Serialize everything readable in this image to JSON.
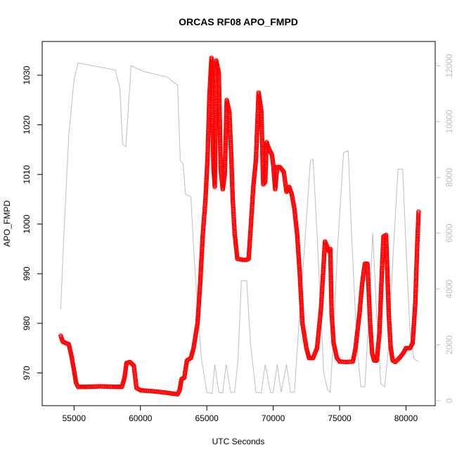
{
  "chart_data": {
    "type": "scatter",
    "title": "ORCAS RF08 APO_FMPD",
    "xlabel": "UTC Seconds",
    "ylabel": "APO_FMPD",
    "xlim": [
      52600,
      82200
    ],
    "ylim": [
      963.4,
      1036.8
    ],
    "y2lim": [
      -180,
      12870
    ],
    "grid": false,
    "legend": "none",
    "x_ticks": [
      55000,
      60000,
      65000,
      70000,
      75000,
      80000
    ],
    "y_ticks": [
      970,
      980,
      990,
      1000,
      1010,
      1020,
      1030
    ],
    "y2_ticks": [
      0,
      2000,
      4000,
      6000,
      8000,
      10000,
      12000
    ],
    "colors": {
      "primary": "#ff0000",
      "secondary": "#bebebe"
    },
    "series": [
      {
        "axis": "left",
        "style": "circles",
        "points": [
          [
            54000,
            977.5
          ],
          [
            54150,
            976.3
          ],
          [
            54400,
            976.0
          ],
          [
            54600,
            975.8
          ],
          [
            54800,
            973.5
          ],
          [
            55000,
            970.5
          ],
          [
            55150,
            968.0
          ],
          [
            55300,
            967.2
          ],
          [
            56000,
            967.2
          ],
          [
            57000,
            967.3
          ],
          [
            58000,
            967.2
          ],
          [
            58600,
            967.2
          ],
          [
            58800,
            969.0
          ],
          [
            58950,
            972.0
          ],
          [
            59200,
            972.2
          ],
          [
            59500,
            971.5
          ],
          [
            59700,
            967.0
          ],
          [
            60000,
            966.5
          ],
          [
            61000,
            966.3
          ],
          [
            62000,
            966.0
          ],
          [
            62800,
            965.7
          ],
          [
            62950,
            966.5
          ],
          [
            63100,
            968.8
          ],
          [
            63300,
            969.0
          ],
          [
            63500,
            972.5
          ],
          [
            63800,
            973.0
          ],
          [
            64000,
            975.0
          ],
          [
            64300,
            980.0
          ],
          [
            64500,
            988.0
          ],
          [
            64700,
            998.0
          ],
          [
            64900,
            1005.0
          ],
          [
            65050,
            1013.0
          ],
          [
            65200,
            1026.0
          ],
          [
            65350,
            1033.5
          ],
          [
            65500,
            1011.5
          ],
          [
            65600,
            1007.5
          ],
          [
            65700,
            1033.0
          ],
          [
            65900,
            1030.5
          ],
          [
            66050,
            1011.0
          ],
          [
            66200,
            1007.0
          ],
          [
            66350,
            1010.0
          ],
          [
            66500,
            1025.0
          ],
          [
            66700,
            1022.5
          ],
          [
            66850,
            1013.0
          ],
          [
            66950,
            1005.0
          ],
          [
            67100,
            998.0
          ],
          [
            67300,
            993.0
          ],
          [
            67700,
            992.8
          ],
          [
            68000,
            992.8
          ],
          [
            68150,
            993.0
          ],
          [
            68300,
            999.0
          ],
          [
            68500,
            1007.5
          ],
          [
            68700,
            1013.0
          ],
          [
            68900,
            1026.5
          ],
          [
            69100,
            1023.0
          ],
          [
            69250,
            1008.0
          ],
          [
            69400,
            1008.5
          ],
          [
            69500,
            1016.5
          ],
          [
            69700,
            1015.0
          ],
          [
            69900,
            1014.0
          ],
          [
            70000,
            1012.0
          ],
          [
            70150,
            1007.0
          ],
          [
            70300,
            1011.5
          ],
          [
            70500,
            1011.5
          ],
          [
            70800,
            1010.5
          ],
          [
            71000,
            1006.5
          ],
          [
            71200,
            1007.5
          ],
          [
            71400,
            1006.0
          ],
          [
            71600,
            1003.0
          ],
          [
            71800,
            998.0
          ],
          [
            72000,
            990.0
          ],
          [
            72200,
            980.0
          ],
          [
            72500,
            975.0
          ],
          [
            72700,
            973.0
          ],
          [
            73000,
            973.0
          ],
          [
            73300,
            975.0
          ],
          [
            73600,
            983.0
          ],
          [
            73900,
            996.5
          ],
          [
            74200,
            994.5
          ],
          [
            74300,
            995.0
          ],
          [
            74400,
            982.0
          ],
          [
            74550,
            976.0
          ],
          [
            74800,
            973.0
          ],
          [
            75000,
            972.3
          ],
          [
            75500,
            972.2
          ],
          [
            76000,
            972.3
          ],
          [
            76200,
            975.0
          ],
          [
            76500,
            982.0
          ],
          [
            76700,
            988.0
          ],
          [
            76900,
            992.0
          ],
          [
            77100,
            992.0
          ],
          [
            77300,
            980.0
          ],
          [
            77450,
            974.0
          ],
          [
            77600,
            972.5
          ],
          [
            77800,
            972.5
          ],
          [
            78000,
            978.0
          ],
          [
            78150,
            988.0
          ],
          [
            78300,
            997.5
          ],
          [
            78500,
            997.8
          ],
          [
            78600,
            990.0
          ],
          [
            78700,
            982.0
          ],
          [
            78850,
            975.0
          ],
          [
            79000,
            972.5
          ],
          [
            79200,
            972.2
          ],
          [
            79500,
            973.0
          ],
          [
            79800,
            974.0
          ],
          [
            80000,
            975.0
          ],
          [
            80300,
            975.0
          ],
          [
            80500,
            976.0
          ],
          [
            80700,
            984.0
          ],
          [
            80850,
            996.0
          ],
          [
            80950,
            1002.5
          ]
        ]
      },
      {
        "axis": "right",
        "style": "line",
        "points": [
          [
            54000,
            3300
          ],
          [
            54200,
            5600
          ],
          [
            54600,
            9500
          ],
          [
            55000,
            11500
          ],
          [
            55300,
            12100
          ],
          [
            58100,
            11850
          ],
          [
            58450,
            11200
          ],
          [
            58650,
            9200
          ],
          [
            58900,
            9100
          ],
          [
            59300,
            12000
          ],
          [
            60200,
            11800
          ],
          [
            62000,
            11600
          ],
          [
            62800,
            11300
          ],
          [
            63000,
            8600
          ],
          [
            63200,
            8500
          ],
          [
            63400,
            7400
          ],
          [
            63800,
            7300
          ],
          [
            64000,
            5500
          ],
          [
            64300,
            3300
          ],
          [
            64600,
            1500
          ],
          [
            65000,
            300
          ],
          [
            65400,
            250
          ],
          [
            65600,
            1300
          ],
          [
            65900,
            300
          ],
          [
            66200,
            280
          ],
          [
            66450,
            1300
          ],
          [
            66800,
            300
          ],
          [
            67100,
            300
          ],
          [
            67350,
            1500
          ],
          [
            67600,
            4300
          ],
          [
            68000,
            4300
          ],
          [
            68300,
            2000
          ],
          [
            68700,
            300
          ],
          [
            69100,
            280
          ],
          [
            69400,
            1300
          ],
          [
            69800,
            280
          ],
          [
            70000,
            300
          ],
          [
            70300,
            1300
          ],
          [
            70600,
            300
          ],
          [
            71000,
            1300
          ],
          [
            71300,
            300
          ],
          [
            71600,
            300
          ],
          [
            71900,
            2500
          ],
          [
            72400,
            5800
          ],
          [
            72800,
            8600
          ],
          [
            73000,
            8650
          ],
          [
            73300,
            6000
          ],
          [
            73800,
            1000
          ],
          [
            74100,
            400
          ],
          [
            74300,
            300
          ],
          [
            74500,
            2000
          ],
          [
            74850,
            5500
          ],
          [
            75300,
            8900
          ],
          [
            75650,
            8950
          ],
          [
            75900,
            6000
          ],
          [
            76300,
            2000
          ],
          [
            76600,
            500
          ],
          [
            76900,
            500
          ],
          [
            77200,
            3000
          ],
          [
            77500,
            6000
          ],
          [
            77800,
            3000
          ],
          [
            78100,
            600
          ],
          [
            78400,
            500
          ],
          [
            78700,
            2000
          ],
          [
            79000,
            5000
          ],
          [
            79400,
            8300
          ],
          [
            79750,
            8300
          ],
          [
            80000,
            5500
          ],
          [
            80300,
            2500
          ],
          [
            80600,
            1500
          ],
          [
            80950,
            1400
          ]
        ]
      }
    ]
  }
}
